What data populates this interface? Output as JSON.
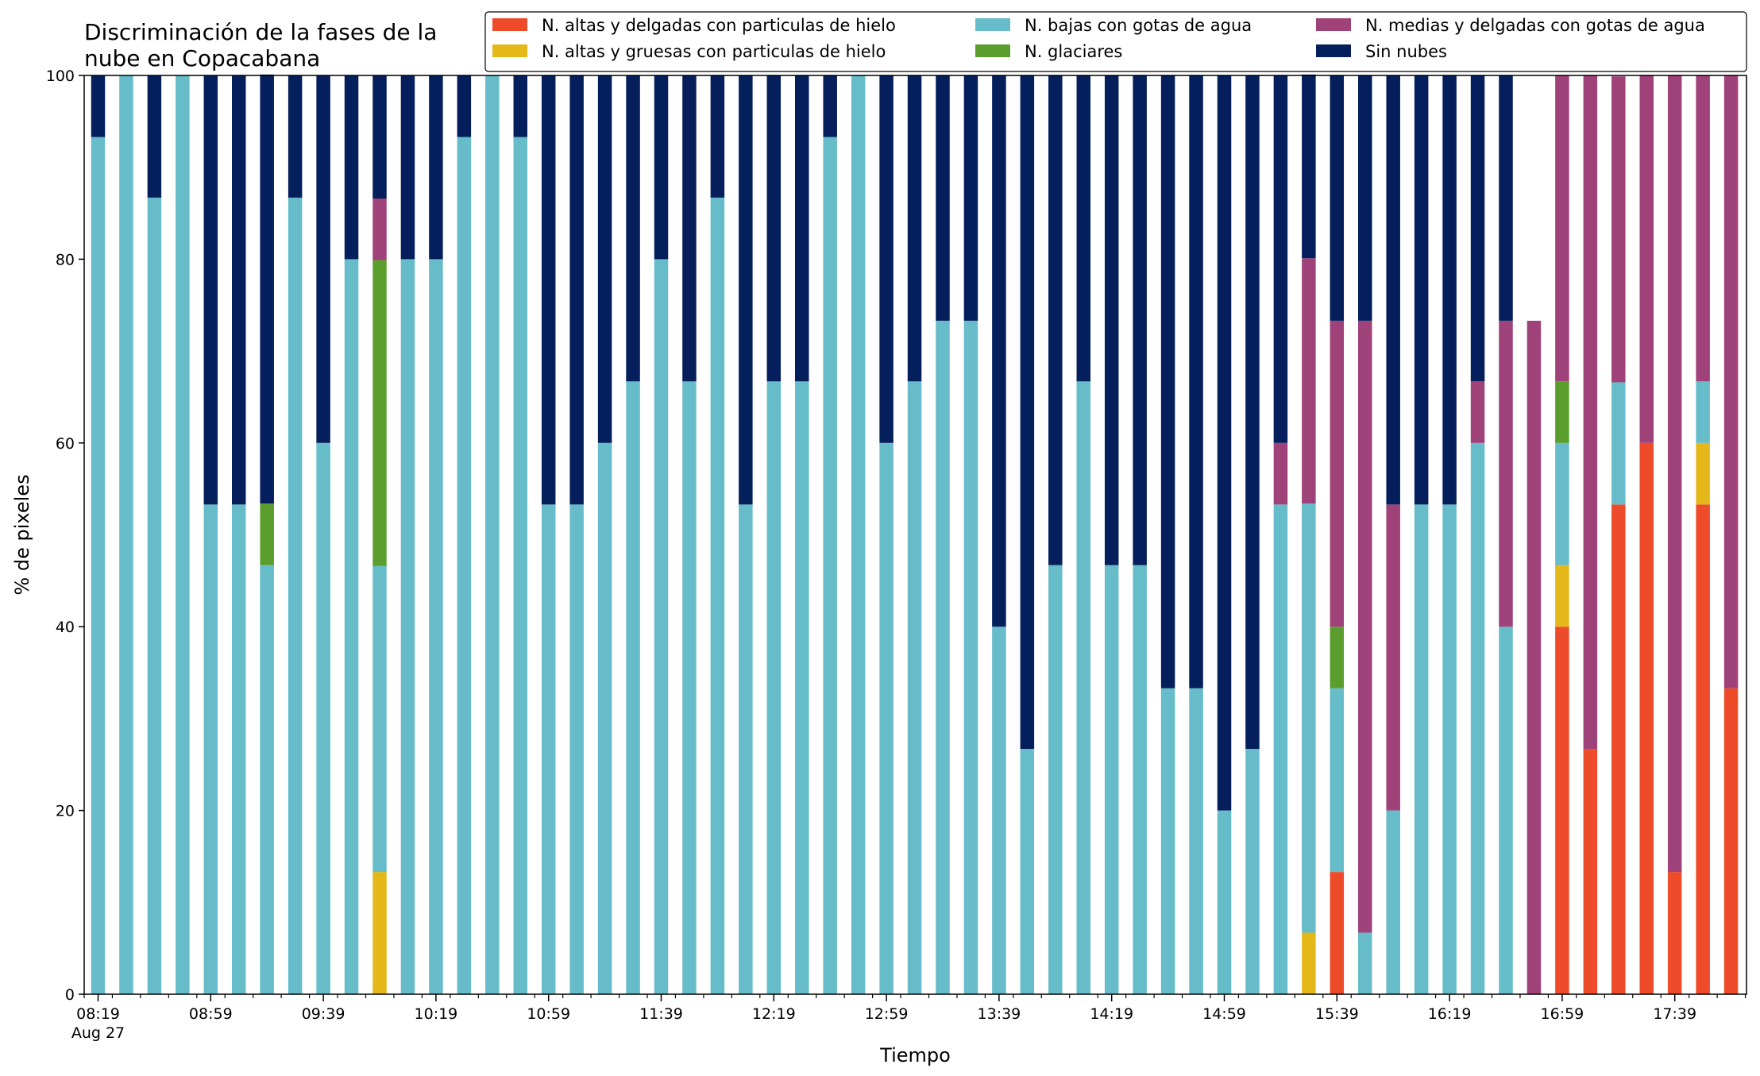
{
  "chart_data": {
    "type": "bar",
    "stacked": true,
    "title": [
      "Discriminación de la fases de la",
      "nube en Copacabana"
    ],
    "xlabel": "Tiempo",
    "ylabel": "% de pixeles",
    "ylim": [
      0,
      100
    ],
    "yticks": [
      0,
      20,
      40,
      60,
      80,
      100
    ],
    "grid": false,
    "legend_position": "top-right",
    "x_ticks": [
      {
        "index": 0,
        "label": "08:19",
        "sublabel": "Aug 27"
      },
      {
        "index": 4,
        "label": "08:59"
      },
      {
        "index": 8,
        "label": "09:39"
      },
      {
        "index": 12,
        "label": "10:19"
      },
      {
        "index": 16,
        "label": "10:59"
      },
      {
        "index": 20,
        "label": "11:39"
      },
      {
        "index": 24,
        "label": "12:19"
      },
      {
        "index": 28,
        "label": "12:59"
      },
      {
        "index": 32,
        "label": "13:39"
      },
      {
        "index": 36,
        "label": "14:19"
      },
      {
        "index": 40,
        "label": "14:59"
      },
      {
        "index": 44,
        "label": "15:39"
      },
      {
        "index": 48,
        "label": "16:19"
      },
      {
        "index": 52,
        "label": "16:59"
      },
      {
        "index": 56,
        "label": "17:39"
      }
    ],
    "series": [
      {
        "name": "N. altas y delgadas con particulas de hielo",
        "color": "#ee4b2b",
        "values": [
          0,
          0,
          0,
          0,
          0,
          0,
          0,
          0,
          0,
          0,
          0,
          0,
          0,
          0,
          0,
          0,
          0,
          0,
          0,
          0,
          0,
          0,
          0,
          0,
          0,
          0,
          0,
          0,
          0,
          0,
          0,
          0,
          0,
          0,
          0,
          0,
          0,
          0,
          0,
          0,
          0,
          0,
          0,
          0,
          13.3,
          0,
          0,
          0,
          0,
          0,
          0,
          0,
          40,
          26.7,
          53.3,
          60,
          13.3,
          53.3,
          33.3
        ]
      },
      {
        "name": "N. altas y gruesas con particulas de hielo",
        "color": "#e5b81a",
        "values": [
          0,
          0,
          0,
          0,
          0,
          0,
          0,
          0,
          0,
          0,
          13.3,
          0,
          0,
          0,
          0,
          0,
          0,
          0,
          0,
          0,
          0,
          0,
          0,
          0,
          0,
          0,
          0,
          0,
          0,
          0,
          0,
          0,
          0,
          0,
          0,
          0,
          0,
          0,
          0,
          0,
          0,
          0,
          0,
          6.7,
          0,
          0,
          0,
          0,
          0,
          0,
          0,
          0,
          6.7,
          0,
          0,
          0,
          0,
          6.7,
          0
        ]
      },
      {
        "name": "N. bajas con gotas de agua",
        "color": "#66bcc8",
        "values": [
          93.3,
          100,
          86.7,
          100,
          53.3,
          53.3,
          46.7,
          86.7,
          60,
          80,
          33.3,
          80,
          80,
          93.3,
          100,
          93.3,
          53.3,
          53.3,
          60,
          66.7,
          80,
          66.7,
          86.7,
          53.3,
          66.7,
          66.7,
          93.3,
          100,
          60,
          66.7,
          73.3,
          73.3,
          40,
          26.7,
          46.7,
          66.7,
          46.7,
          46.7,
          33.3,
          33.3,
          20,
          26.7,
          53.3,
          46.7,
          20,
          6.7,
          20,
          53.3,
          53.3,
          60,
          40,
          0,
          13.3,
          0,
          13.3,
          0,
          0,
          6.7,
          0
        ]
      },
      {
        "name": "N. glaciares",
        "color": "#5c9e2e",
        "values": [
          0,
          0,
          0,
          0,
          0,
          0,
          6.7,
          0,
          0,
          0,
          33.3,
          0,
          0,
          0,
          0,
          0,
          0,
          0,
          0,
          0,
          0,
          0,
          0,
          0,
          0,
          0,
          0,
          0,
          0,
          0,
          0,
          0,
          0,
          0,
          0,
          0,
          0,
          0,
          0,
          0,
          0,
          0,
          0,
          0,
          6.7,
          0,
          0,
          0,
          0,
          0,
          0,
          0,
          6.7,
          0,
          0,
          0,
          0,
          0,
          0
        ]
      },
      {
        "name": "N. medias y delgadas con gotas de agua",
        "color": "#a0427a",
        "values": [
          0,
          0,
          0,
          0,
          0,
          0,
          0,
          0,
          0,
          0,
          6.7,
          0,
          0,
          0,
          0,
          0,
          0,
          0,
          0,
          0,
          0,
          0,
          0,
          0,
          0,
          0,
          0,
          0,
          0,
          0,
          0,
          0,
          0,
          0,
          0,
          0,
          0,
          0,
          0,
          0,
          0,
          0,
          6.7,
          26.7,
          33.3,
          66.6,
          33.3,
          0,
          0,
          6.7,
          33.3,
          73.3,
          33.3,
          73.3,
          33.3,
          40,
          86.7,
          33.3,
          66.7
        ]
      },
      {
        "name": "Sin nubes",
        "color": "#041f5c",
        "values": [
          6.7,
          0,
          13.3,
          0,
          46.7,
          46.7,
          46.7,
          13.3,
          40,
          20,
          13.4,
          20,
          20,
          6.7,
          0,
          6.7,
          46.7,
          46.7,
          40,
          33.3,
          20,
          33.3,
          13.3,
          46.7,
          33.3,
          33.3,
          6.7,
          0,
          40,
          33.3,
          26.7,
          26.7,
          60,
          73.3,
          53.3,
          33.3,
          53.3,
          53.3,
          66.7,
          66.7,
          80,
          73.3,
          40,
          20,
          26.7,
          26.7,
          46.7,
          46.7,
          46.7,
          33.3,
          26.7,
          0,
          0,
          0,
          0,
          0,
          0,
          0,
          0
        ]
      }
    ]
  }
}
